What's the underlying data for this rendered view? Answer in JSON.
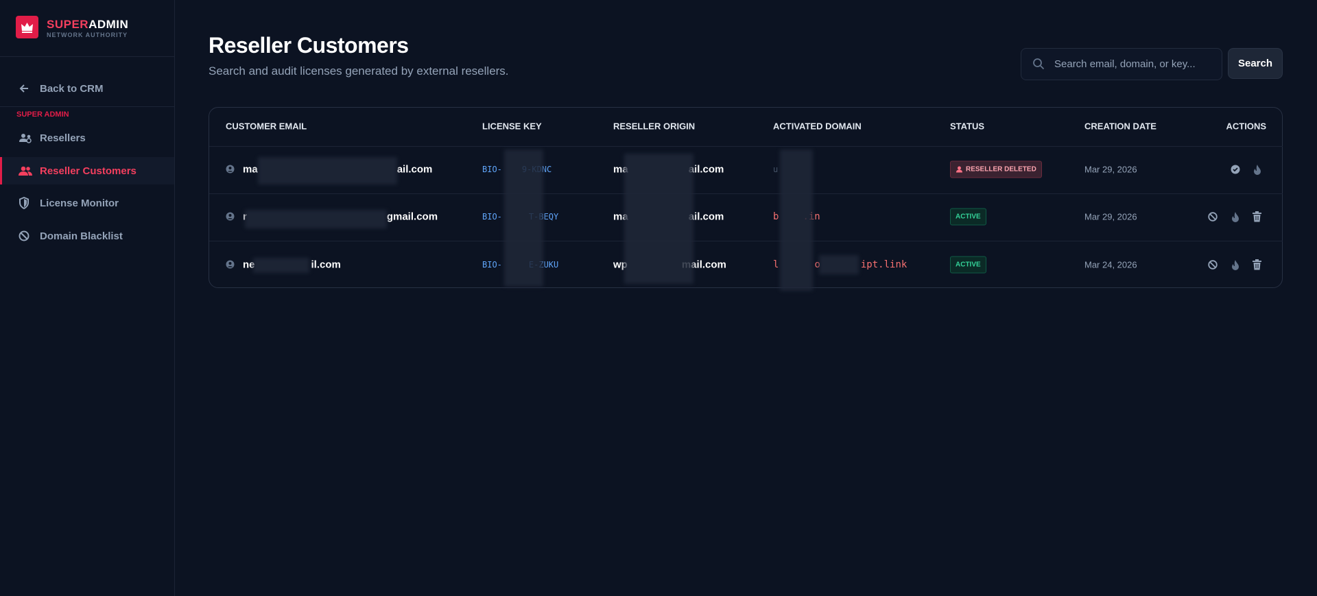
{
  "sidebar": {
    "brand": {
      "part1": "SUPER",
      "part2": "ADMIN",
      "tagline": "NETWORK AUTHORITY"
    },
    "back": "Back to CRM",
    "section": "SUPER ADMIN",
    "nav": [
      "Resellers",
      "Reseller Customers",
      "License Monitor",
      "Domain Blacklist"
    ]
  },
  "header": {
    "title": "Reseller Customers",
    "subtitle": "Search and audit licenses generated by external resellers."
  },
  "search": {
    "placeholder": "Search email, domain, or key...",
    "button": "Search"
  },
  "table": {
    "columns": [
      "CUSTOMER EMAIL",
      "LICENSE KEY",
      "RESELLER ORIGIN",
      "ACTIVATED DOMAIN",
      "STATUS",
      "CREATION DATE",
      "ACTIONS"
    ],
    "rows": [
      {
        "email": [
          "ma",
          "ail.com"
        ],
        "license_key": [
          "BIO-",
          "9-KDNC"
        ],
        "reseller": [
          "ma",
          "ail.com"
        ],
        "domain": [
          "u"
        ],
        "status": "RESELLER DELETED",
        "date": "Mar 29, 2026"
      },
      {
        "email": [
          "r",
          "gmail.com"
        ],
        "license_key": [
          "BIO-",
          "T-BEQY"
        ],
        "reseller": [
          "ma",
          "ail.com"
        ],
        "domain": [
          "b",
          ".in"
        ],
        "status": "ACTIVE",
        "date": "Mar 29, 2026"
      },
      {
        "email": [
          "ne",
          "il.com"
        ],
        "license_key": [
          "BIO-",
          "E-ZUKU"
        ],
        "reseller": [
          "wp",
          "mail.com"
        ],
        "domain": [
          "l",
          "o",
          "ipt.link"
        ],
        "status": "ACTIVE",
        "date": "Mar 24, 2026"
      }
    ]
  }
}
